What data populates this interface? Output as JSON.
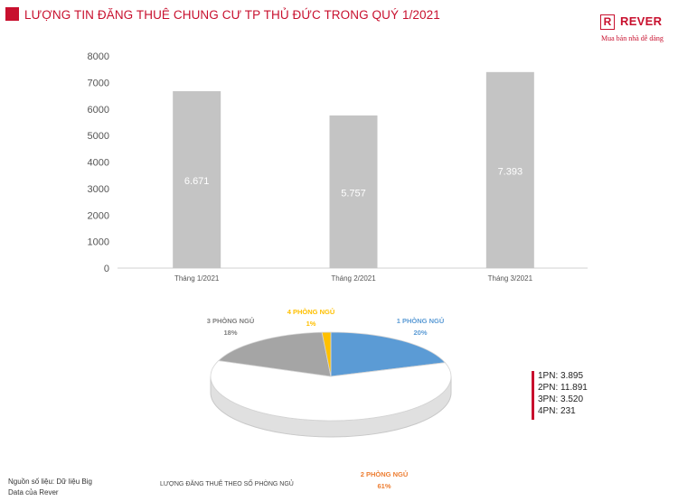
{
  "title": "LƯỢNG TIN ĐĂNG THUÊ CHUNG CƯ TP THỦ ĐỨC TRONG QUÝ 1/2021",
  "logo": {
    "mark": "R",
    "name": "REVER",
    "tagline": "Mua bán nhà dễ dàng"
  },
  "colors": {
    "accent": "#c8102e",
    "bar": "#c4c4c4"
  },
  "chart_data": [
    {
      "type": "bar",
      "categories": [
        "Tháng 1/2021",
        "Tháng 2/2021",
        "Tháng 3/2021"
      ],
      "values": [
        6671,
        5757,
        7393
      ],
      "value_labels": [
        "6.671",
        "5.757",
        "7.393"
      ],
      "title": "",
      "xlabel": "",
      "ylabel": "",
      "ylim": [
        0,
        8000
      ],
      "yticks": [
        "0",
        "1000",
        "2000",
        "3000",
        "4000",
        "5000",
        "6000",
        "7000",
        "8000"
      ],
      "grid": false
    },
    {
      "type": "pie",
      "title": "LƯỢNG ĐĂNG THUÊ THEO SỐ PHÒNG NGỦ",
      "slices": [
        {
          "label": "1 PHÒNG NGỦ",
          "pct_label": "20%",
          "value": 3895,
          "color": "#5b9bd5"
        },
        {
          "label": "2 PHÒNG NGỦ",
          "pct_label": "61%",
          "value": 11891,
          "color": "#ffffff"
        },
        {
          "label": "3 PHÒNG NGỦ",
          "pct_label": "18%",
          "value": 3520,
          "color": "#a5a5a5"
        },
        {
          "label": "4 PHÒNG NGỦ",
          "pct_label": "1%",
          "value": 231,
          "color": "#ffc000"
        }
      ],
      "label_colors": [
        "#5b9bd5",
        "#ed7d31",
        "#7f7f7f",
        "#ffc000"
      ],
      "legend": [
        "1PN: 3.895",
        "2PN: 11.891",
        "3PN: 3.520",
        "4PN: 231"
      ]
    }
  ],
  "source": "Nguồn số liệu: Dữ liệu Big Data của Rever"
}
